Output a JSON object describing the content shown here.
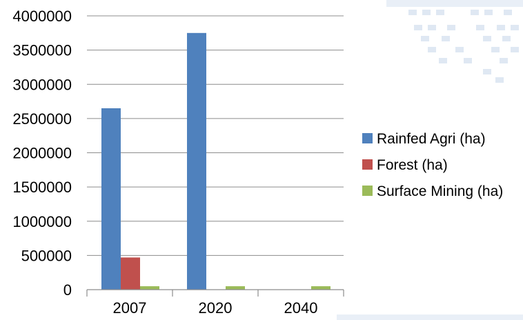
{
  "colors": {
    "rainfed": "#4F81BD",
    "forest": "#C0504D",
    "mining": "#9BBB59",
    "gridline": "#8c8c8c",
    "decor": "#dfe8f3"
  },
  "chart_data": {
    "type": "bar",
    "categories": [
      "2007",
      "2020",
      "2040"
    ],
    "series": [
      {
        "name": "Rainfed Agri (ha)",
        "values": [
          2650000,
          3750000,
          0
        ]
      },
      {
        "name": "Forest (ha)",
        "values": [
          470000,
          0,
          0
        ]
      },
      {
        "name": "Surface Mining (ha)",
        "values": [
          50000,
          50000,
          50000
        ]
      }
    ],
    "ylim": [
      0,
      4000000
    ],
    "yticks": [
      "0",
      "500000",
      "1000000",
      "1500000",
      "2000000",
      "2500000",
      "3000000",
      "3500000",
      "4000000"
    ],
    "grid": true,
    "legend_position": "right"
  }
}
